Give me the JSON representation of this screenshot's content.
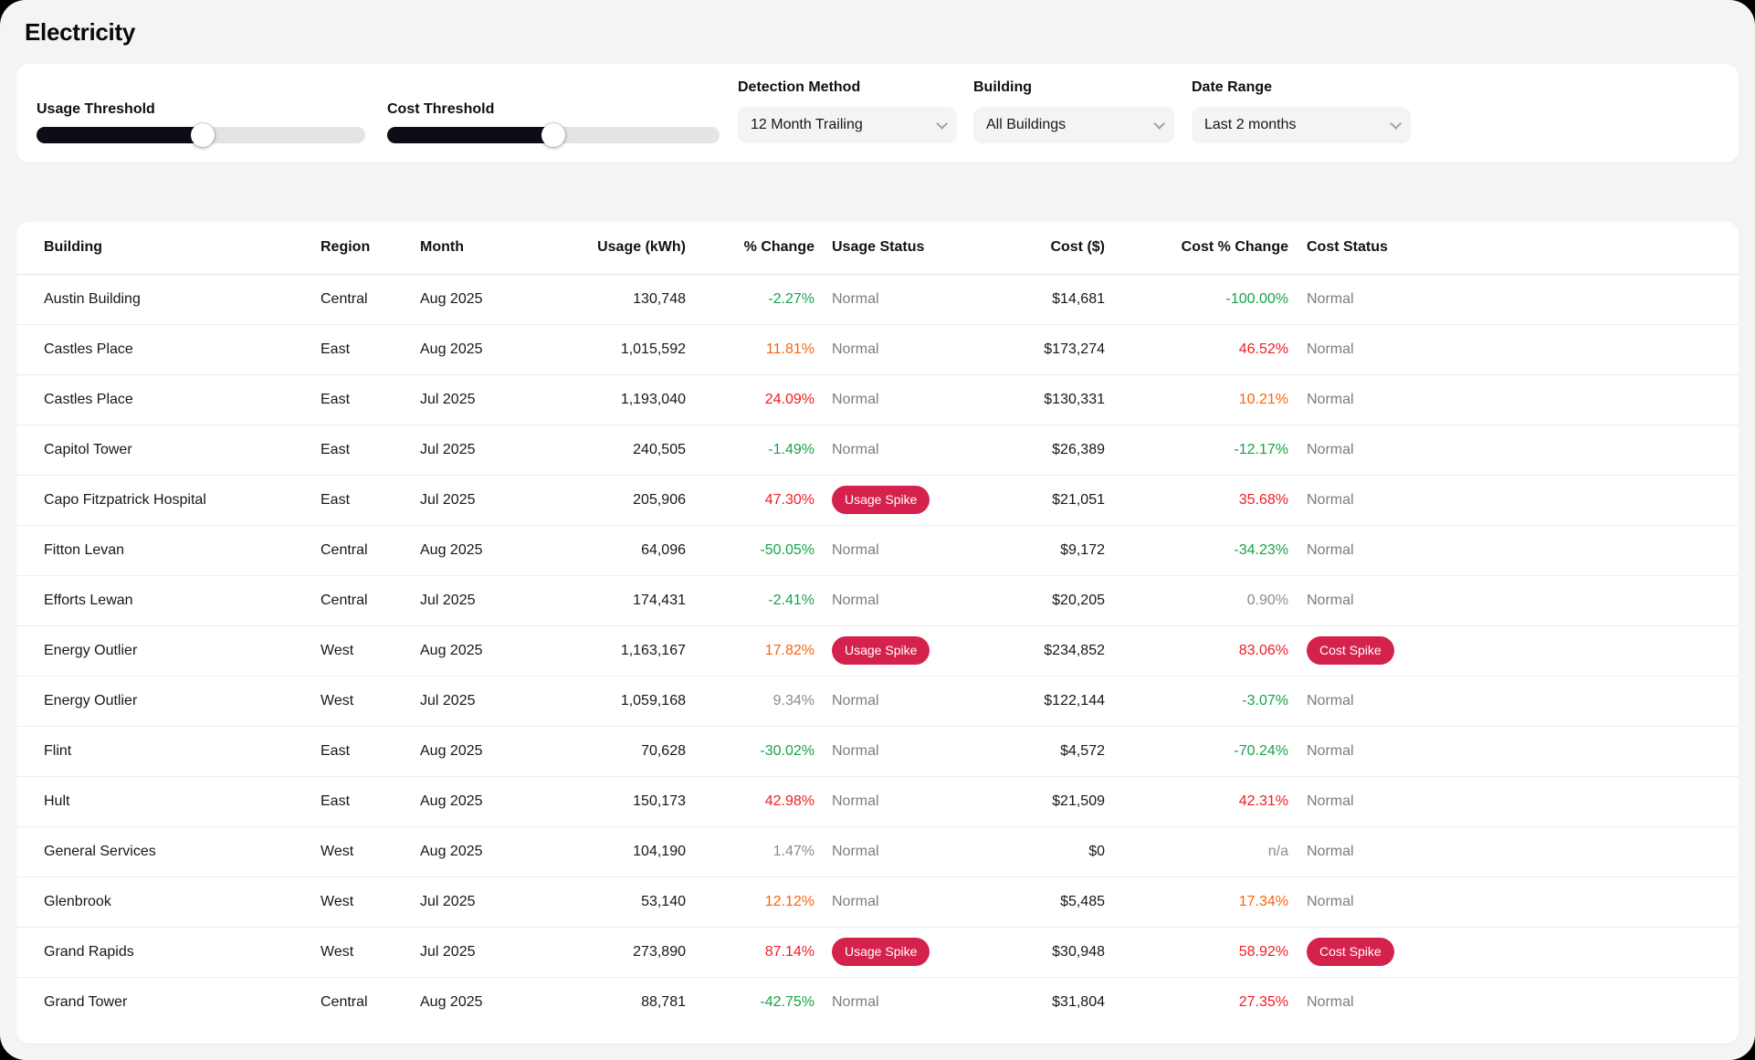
{
  "page": {
    "title": "Electricity"
  },
  "controls": {
    "usage_threshold": {
      "label": "Usage Threshold",
      "value_pct": 50.5
    },
    "cost_threshold": {
      "label": "Cost Threshold",
      "value_pct": 50
    },
    "detection_method": {
      "label": "Detection Method",
      "selected": "12 Month Trailing"
    },
    "building": {
      "label": "Building",
      "selected": "All Buildings"
    },
    "date_range": {
      "label": "Date Range",
      "selected": "Last 2 months"
    }
  },
  "colors": {
    "green": "#16a34a",
    "red": "#ee1d23",
    "orange": "#f9640d",
    "muted": "#8b8b95",
    "badge": "#d5224c"
  },
  "table": {
    "columns": [
      {
        "label": "Building",
        "align": "left"
      },
      {
        "label": "Region",
        "align": "left"
      },
      {
        "label": "Month",
        "align": "left"
      },
      {
        "label": "Usage (kWh)",
        "align": "right"
      },
      {
        "label": "% Change",
        "align": "right"
      },
      {
        "label": "Usage Status",
        "align": "left"
      },
      {
        "label": "Cost ($)",
        "align": "right"
      },
      {
        "label": "Cost % Change",
        "align": "right"
      },
      {
        "label": "Cost Status",
        "align": "left"
      }
    ],
    "rows": [
      {
        "building": "Austin Building",
        "region": "Central",
        "month": "Aug 2025",
        "usage": "130,748",
        "usage_change": "-2.27%",
        "usage_change_tone": "green",
        "usage_status": "Normal",
        "cost": "$14,681",
        "cost_change": "-100.00%",
        "cost_change_tone": "green",
        "cost_status": "Normal"
      },
      {
        "building": "Castles Place",
        "region": "East",
        "month": "Aug 2025",
        "usage": "1,015,592",
        "usage_change": "11.81%",
        "usage_change_tone": "orange",
        "usage_status": "Normal",
        "cost": "$173,274",
        "cost_change": "46.52%",
        "cost_change_tone": "red",
        "cost_status": "Normal"
      },
      {
        "building": "Castles Place",
        "region": "East",
        "month": "Jul 2025",
        "usage": "1,193,040",
        "usage_change": "24.09%",
        "usage_change_tone": "red",
        "usage_status": "Normal",
        "cost": "$130,331",
        "cost_change": "10.21%",
        "cost_change_tone": "orange",
        "cost_status": "Normal"
      },
      {
        "building": "Capitol Tower",
        "region": "East",
        "month": "Jul 2025",
        "usage": "240,505",
        "usage_change": "-1.49%",
        "usage_change_tone": "green",
        "usage_status": "Normal",
        "cost": "$26,389",
        "cost_change": "-12.17%",
        "cost_change_tone": "green",
        "cost_status": "Normal"
      },
      {
        "building": "Capo Fitzpatrick Hospital",
        "region": "East",
        "month": "Jul 2025",
        "usage": "205,906",
        "usage_change": "47.30%",
        "usage_change_tone": "red",
        "usage_status": "Usage Spike",
        "cost": "$21,051",
        "cost_change": "35.68%",
        "cost_change_tone": "red",
        "cost_status": "Normal"
      },
      {
        "building": "Fitton Levan",
        "region": "Central",
        "month": "Aug 2025",
        "usage": "64,096",
        "usage_change": "-50.05%",
        "usage_change_tone": "green",
        "usage_status": "Normal",
        "cost": "$9,172",
        "cost_change": "-34.23%",
        "cost_change_tone": "green",
        "cost_status": "Normal"
      },
      {
        "building": "Efforts Lewan",
        "region": "Central",
        "month": "Jul 2025",
        "usage": "174,431",
        "usage_change": "-2.41%",
        "usage_change_tone": "green",
        "usage_status": "Normal",
        "cost": "$20,205",
        "cost_change": "0.90%",
        "cost_change_tone": "muted",
        "cost_status": "Normal"
      },
      {
        "building": "Energy Outlier",
        "region": "West",
        "month": "Aug 2025",
        "usage": "1,163,167",
        "usage_change": "17.82%",
        "usage_change_tone": "orange",
        "usage_status": "Usage Spike",
        "cost": "$234,852",
        "cost_change": "83.06%",
        "cost_change_tone": "red",
        "cost_status": "Cost Spike"
      },
      {
        "building": "Energy Outlier",
        "region": "West",
        "month": "Jul 2025",
        "usage": "1,059,168",
        "usage_change": "9.34%",
        "usage_change_tone": "muted",
        "usage_status": "Normal",
        "cost": "$122,144",
        "cost_change": "-3.07%",
        "cost_change_tone": "green",
        "cost_status": "Normal"
      },
      {
        "building": "Flint",
        "region": "East",
        "month": "Aug 2025",
        "usage": "70,628",
        "usage_change": "-30.02%",
        "usage_change_tone": "green",
        "usage_status": "Normal",
        "cost": "$4,572",
        "cost_change": "-70.24%",
        "cost_change_tone": "green",
        "cost_status": "Normal"
      },
      {
        "building": "Hult",
        "region": "East",
        "month": "Aug 2025",
        "usage": "150,173",
        "usage_change": "42.98%",
        "usage_change_tone": "red",
        "usage_status": "Normal",
        "cost": "$21,509",
        "cost_change": "42.31%",
        "cost_change_tone": "red",
        "cost_status": "Normal"
      },
      {
        "building": "General Services",
        "region": "West",
        "month": "Aug 2025",
        "usage": "104,190",
        "usage_change": "1.47%",
        "usage_change_tone": "muted",
        "usage_status": "Normal",
        "cost": "$0",
        "cost_change": "n/a",
        "cost_change_tone": "muted",
        "cost_status": "Normal"
      },
      {
        "building": "Glenbrook",
        "region": "West",
        "month": "Jul 2025",
        "usage": "53,140",
        "usage_change": "12.12%",
        "usage_change_tone": "orange",
        "usage_status": "Normal",
        "cost": "$5,485",
        "cost_change": "17.34%",
        "cost_change_tone": "orange",
        "cost_status": "Normal"
      },
      {
        "building": "Grand Rapids",
        "region": "West",
        "month": "Jul 2025",
        "usage": "273,890",
        "usage_change": "87.14%",
        "usage_change_tone": "red",
        "usage_status": "Usage Spike",
        "cost": "$30,948",
        "cost_change": "58.92%",
        "cost_change_tone": "red",
        "cost_status": "Cost Spike"
      },
      {
        "building": "Grand Tower",
        "region": "Central",
        "month": "Aug 2025",
        "usage": "88,781",
        "usage_change": "-42.75%",
        "usage_change_tone": "green",
        "usage_status": "Normal",
        "cost": "$31,804",
        "cost_change": "27.35%",
        "cost_change_tone": "red",
        "cost_status": "Normal"
      }
    ]
  }
}
